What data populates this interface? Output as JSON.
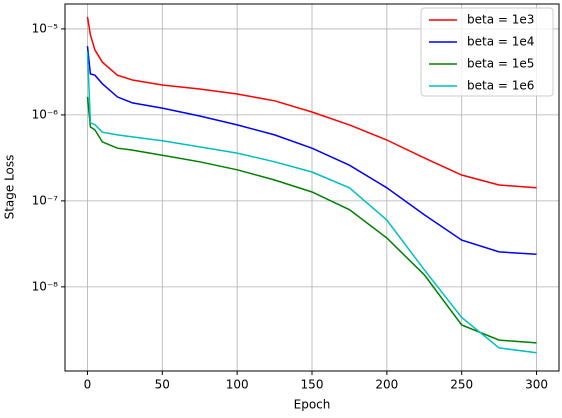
{
  "chart_data": {
    "type": "line",
    "xlabel": "Epoch",
    "ylabel": "Stage Loss",
    "x": [
      0,
      2,
      5,
      10,
      20,
      30,
      50,
      75,
      100,
      125,
      150,
      175,
      200,
      225,
      250,
      275,
      300
    ],
    "series": [
      {
        "name": "beta = 1e3",
        "color": "#ff0000",
        "values": [
          1.38e-05,
          8.5e-06,
          5.7e-06,
          4.1e-06,
          2.9e-06,
          2.55e-06,
          2.23e-06,
          2e-06,
          1.75e-06,
          1.46e-06,
          1.08e-06,
          7.65e-07,
          5.1e-07,
          3.16e-07,
          2e-07,
          1.53e-07,
          1.42e-07
        ]
      },
      {
        "name": "beta = 1e4",
        "color": "#0000ff",
        "values": [
          6.3e-06,
          3e-06,
          2.9e-06,
          2.3e-06,
          1.62e-06,
          1.38e-06,
          1.2e-06,
          9.7e-07,
          7.65e-07,
          5.85e-07,
          4.1e-07,
          2.6e-07,
          1.42e-07,
          6.9e-08,
          3.5e-08,
          2.55e-08,
          2.4e-08
        ]
      },
      {
        "name": "beta = 1e5",
        "color": "#008000",
        "values": [
          1.62e-06,
          7.25e-07,
          6.7e-07,
          4.85e-07,
          4.1e-07,
          3.9e-07,
          3.4e-07,
          2.85e-07,
          2.3e-07,
          1.75e-07,
          1.27e-07,
          7.9e-08,
          3.7e-08,
          1.38e-08,
          3.6e-09,
          2.4e-09,
          2.23e-09
        ]
      },
      {
        "name": "beta = 1e6",
        "color": "#00bfbf",
        "values": [
          5.4e-06,
          8.1e-07,
          7.7e-07,
          6.3e-07,
          5.85e-07,
          5.55e-07,
          5e-07,
          4.25e-07,
          3.6e-07,
          2.85e-07,
          2.17e-07,
          1.42e-07,
          6e-08,
          1.58e-08,
          4.4e-09,
          1.95e-09,
          1.71e-09
        ]
      }
    ],
    "xlim": [
      -15,
      315
    ],
    "xticks": [
      0,
      50,
      100,
      150,
      200,
      250,
      300
    ],
    "ylim": [
      1.05e-09,
      1.95e-05
    ],
    "ylog": true,
    "yticks": [
      {
        "value": 1e-08,
        "label": "10⁻⁸"
      },
      {
        "value": 1e-07,
        "label": "10⁻⁷"
      },
      {
        "value": 1e-06,
        "label": "10⁻⁶"
      },
      {
        "value": 1e-05,
        "label": "10⁻⁵"
      }
    ],
    "grid": true,
    "legend": "upper-right"
  }
}
